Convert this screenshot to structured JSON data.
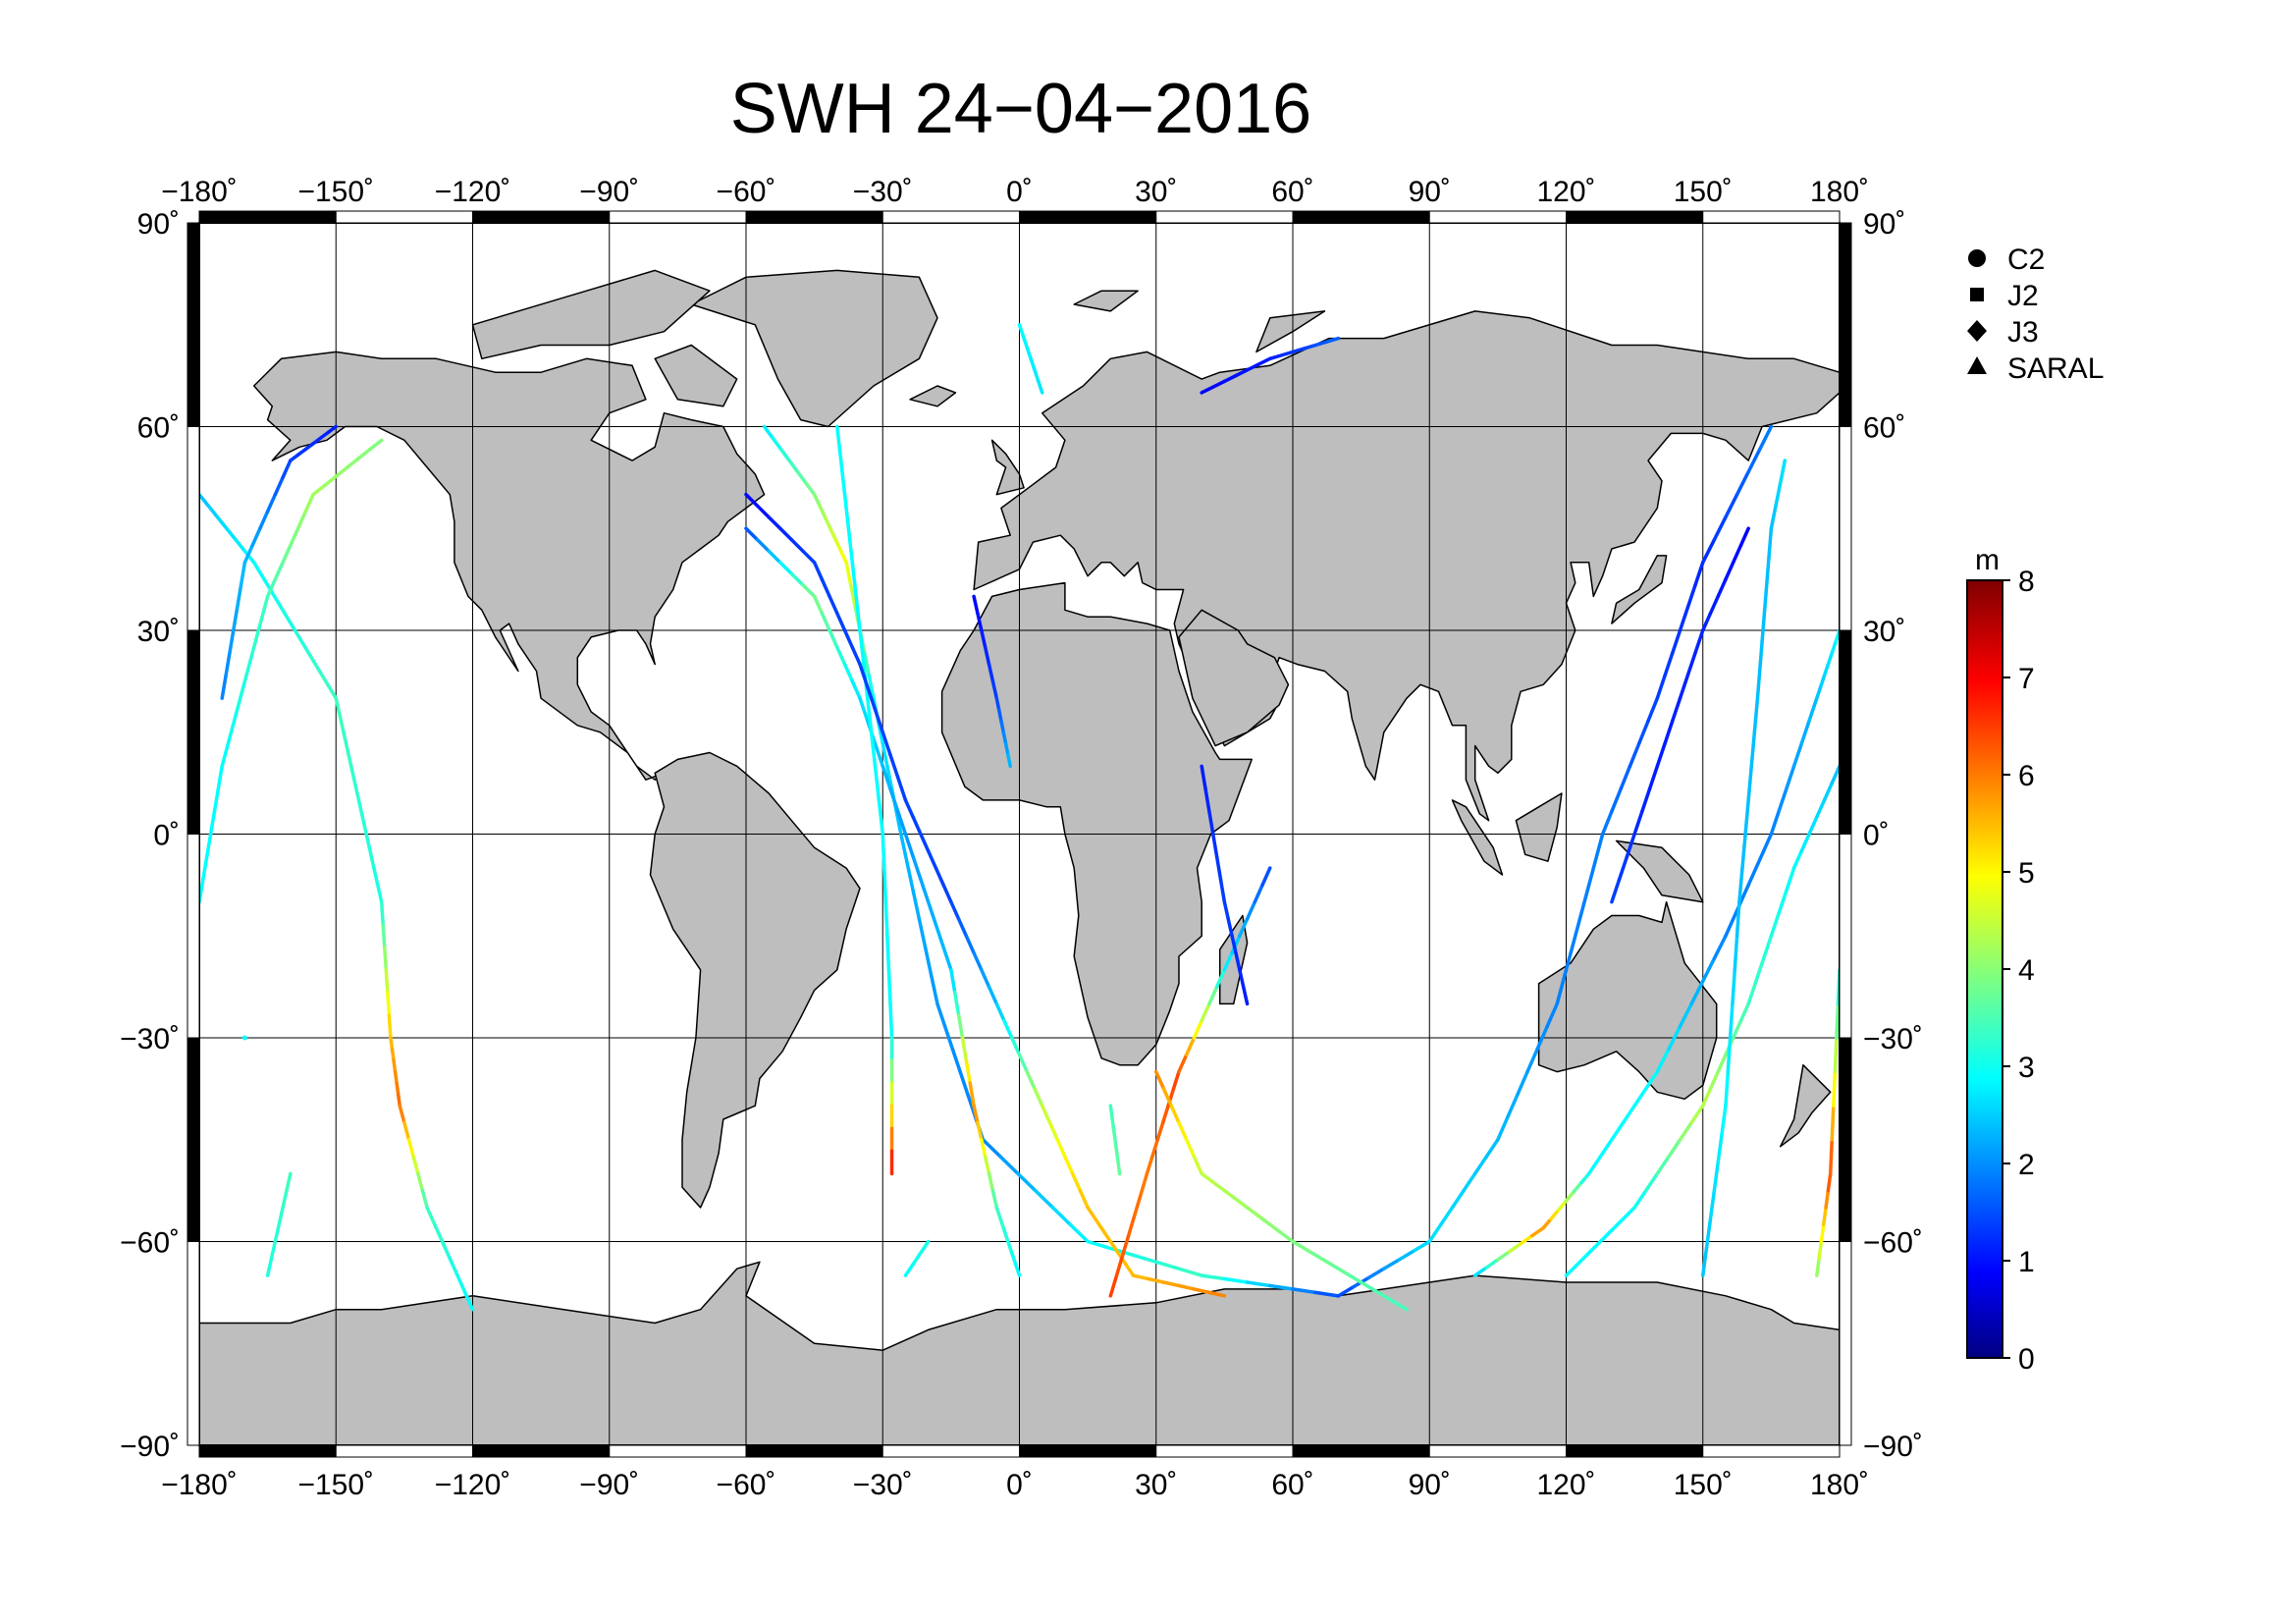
{
  "title": "SWH 24−04−2016",
  "map": {
    "projection": "plate-carree",
    "land_color": "#bebebe",
    "ocean_color": "#ffffff",
    "lon_ticks": [
      "−180˚",
      "−150˚",
      "−120˚",
      "−90˚",
      "−60˚",
      "−30˚",
      "0˚",
      "30˚",
      "60˚",
      "90˚",
      "120˚",
      "150˚",
      "180˚"
    ],
    "lat_ticks": [
      "90˚",
      "60˚",
      "30˚",
      "0˚",
      "−30˚",
      "−60˚",
      "−90˚"
    ],
    "lon_range": [
      -180,
      180
    ],
    "lat_range": [
      -90,
      90
    ]
  },
  "legend": {
    "items": [
      {
        "label": "C2",
        "marker": "circle"
      },
      {
        "label": "J2",
        "marker": "square"
      },
      {
        "label": "J3",
        "marker": "diamond"
      },
      {
        "label": "SARAL",
        "marker": "triangle"
      }
    ]
  },
  "colorbar": {
    "unit": "m",
    "min": 0,
    "max": 8,
    "ticks": [
      "0",
      "1",
      "2",
      "3",
      "4",
      "5",
      "6",
      "7",
      "8"
    ],
    "colormap": "jet"
  },
  "chart_data": {
    "type": "scatter",
    "title": "SWH 24−04−2016",
    "xlim": [
      -180,
      180
    ],
    "ylim": [
      -90,
      90
    ],
    "value_unit": "m",
    "tracks": [
      {
        "points": [
          [
            -56,
            60,
            2.8
          ],
          [
            -45,
            50,
            4.0
          ],
          [
            -38,
            40,
            5.0
          ],
          [
            -32,
            20,
            3.0
          ],
          [
            -26,
            0,
            2.5
          ],
          [
            -18,
            -25,
            2.2
          ],
          [
            -8,
            -45,
            2.0
          ],
          [
            15,
            -60,
            3.0
          ],
          [
            40,
            -65,
            3.5
          ],
          [
            70,
            -68,
            1.5
          ]
        ]
      },
      {
        "points": [
          [
            70,
            -68,
            1.5
          ],
          [
            90,
            -60,
            2.8
          ],
          [
            105,
            -45,
            2.5
          ],
          [
            118,
            -25,
            2.0
          ],
          [
            128,
            0,
            2.0
          ],
          [
            140,
            20,
            1.5
          ],
          [
            150,
            40,
            1.3
          ],
          [
            165,
            60,
            2.0
          ]
        ]
      },
      {
        "points": [
          [
            -180,
            50,
            2.5
          ],
          [
            -168,
            40,
            3.0
          ],
          [
            -150,
            20,
            3.5
          ],
          [
            -140,
            -10,
            3.2
          ],
          [
            -138,
            -30,
            5.5
          ],
          [
            -136,
            -40,
            6.2
          ],
          [
            -130,
            -55,
            3.5
          ],
          [
            -120,
            -70,
            3.0
          ]
        ]
      },
      {
        "points": [
          [
            -175,
            20,
            2.0
          ],
          [
            -170,
            40,
            2.5
          ],
          [
            -160,
            55,
            1.5
          ],
          [
            -150,
            60,
            1.2
          ]
        ]
      },
      {
        "points": [
          [
            -180,
            -10,
            3.0
          ],
          [
            -175,
            10,
            3.0
          ],
          [
            -165,
            35,
            3.5
          ],
          [
            -155,
            50,
            4.3
          ],
          [
            -140,
            58,
            4.0
          ]
        ]
      },
      {
        "points": [
          [
            -60,
            45,
            1.5
          ],
          [
            -45,
            35,
            4.0
          ],
          [
            -35,
            20,
            2.8
          ],
          [
            -25,
            0,
            2.2
          ],
          [
            -15,
            -20,
            2.5
          ],
          [
            -10,
            -40,
            6.0
          ],
          [
            -5,
            -55,
            3.5
          ],
          [
            0,
            -65,
            3.0
          ]
        ]
      },
      {
        "points": [
          [
            -40,
            60,
            3.0
          ],
          [
            -35,
            30,
            3.0
          ],
          [
            -30,
            0,
            3.0
          ],
          [
            -28,
            -30,
            3.0
          ],
          [
            -28,
            -50,
            7.0
          ]
        ]
      },
      {
        "points": [
          [
            -60,
            50,
            1.0
          ],
          [
            -45,
            40,
            1.5
          ],
          [
            -35,
            25,
            1.5
          ],
          [
            -25,
            5,
            1.5
          ],
          [
            -15,
            -10,
            1.5
          ],
          [
            -5,
            -25,
            2.5
          ],
          [
            5,
            -40,
            4.5
          ],
          [
            15,
            -55,
            5.5
          ],
          [
            25,
            -65,
            5.5
          ],
          [
            45,
            -68,
            6.0
          ]
        ]
      },
      {
        "points": [
          [
            -10,
            35,
            1.0
          ],
          [
            -5,
            20,
            1.5
          ],
          [
            -2,
            10,
            2.5
          ]
        ]
      },
      {
        "points": [
          [
            20,
            -68,
            6.5
          ],
          [
            28,
            -50,
            6.0
          ],
          [
            35,
            -35,
            6.5
          ],
          [
            45,
            -20,
            3.0
          ],
          [
            55,
            -5,
            1.5
          ]
        ]
      },
      {
        "points": [
          [
            30,
            -35,
            6.0
          ],
          [
            40,
            -50,
            4.5
          ],
          [
            60,
            -60,
            4.0
          ],
          [
            85,
            -70,
            3.5
          ]
        ]
      },
      {
        "points": [
          [
            40,
            10,
            1.2
          ],
          [
            45,
            -10,
            1.5
          ],
          [
            50,
            -25,
            1.2
          ]
        ]
      },
      {
        "points": [
          [
            40,
            65,
            1.0
          ],
          [
            55,
            70,
            1.2
          ],
          [
            70,
            73,
            1.8
          ]
        ]
      },
      {
        "points": [
          [
            0,
            75,
            3.0
          ],
          [
            5,
            65,
            2.8
          ]
        ]
      },
      {
        "points": [
          [
            120,
            -65,
            3.0
          ],
          [
            135,
            -55,
            3.0
          ],
          [
            150,
            -40,
            4.5
          ],
          [
            160,
            -25,
            3.5
          ],
          [
            170,
            -5,
            3.0
          ],
          [
            180,
            10,
            2.5
          ]
        ]
      },
      {
        "points": [
          [
            100,
            -65,
            2.5
          ],
          [
            115,
            -58,
            6.0
          ],
          [
            125,
            -50,
            3.0
          ],
          [
            140,
            -35,
            3.0
          ],
          [
            155,
            -15,
            2.0
          ],
          [
            165,
            0,
            2.0
          ],
          [
            175,
            20,
            2.5
          ],
          [
            180,
            30,
            3.0
          ]
        ]
      },
      {
        "points": [
          [
            150,
            -65,
            2.5
          ],
          [
            155,
            -40,
            3.0
          ],
          [
            158,
            -10,
            2.5
          ],
          [
            162,
            20,
            2.5
          ],
          [
            165,
            45,
            2.5
          ],
          [
            168,
            55,
            2.8
          ]
        ]
      },
      {
        "points": [
          [
            175,
            -65,
            4.0
          ],
          [
            178,
            -50,
            6.5
          ],
          [
            180,
            -20,
            3.0
          ]
        ]
      },
      {
        "points": [
          [
            130,
            -10,
            1.5
          ],
          [
            140,
            10,
            1.2
          ],
          [
            150,
            30,
            1.3
          ],
          [
            160,
            45,
            1.0
          ]
        ]
      },
      {
        "points": [
          [
            -165,
            -65,
            3.2
          ],
          [
            -160,
            -50,
            3.5
          ]
        ]
      },
      {
        "points": [
          [
            -170,
            -30,
            3.0
          ]
        ]
      },
      {
        "points": [
          [
            20,
            -40,
            3.5
          ],
          [
            22,
            -50,
            3.8
          ]
        ]
      },
      {
        "points": [
          [
            -25,
            -65,
            3.0
          ],
          [
            -20,
            -60,
            3.2
          ]
        ]
      }
    ]
  }
}
